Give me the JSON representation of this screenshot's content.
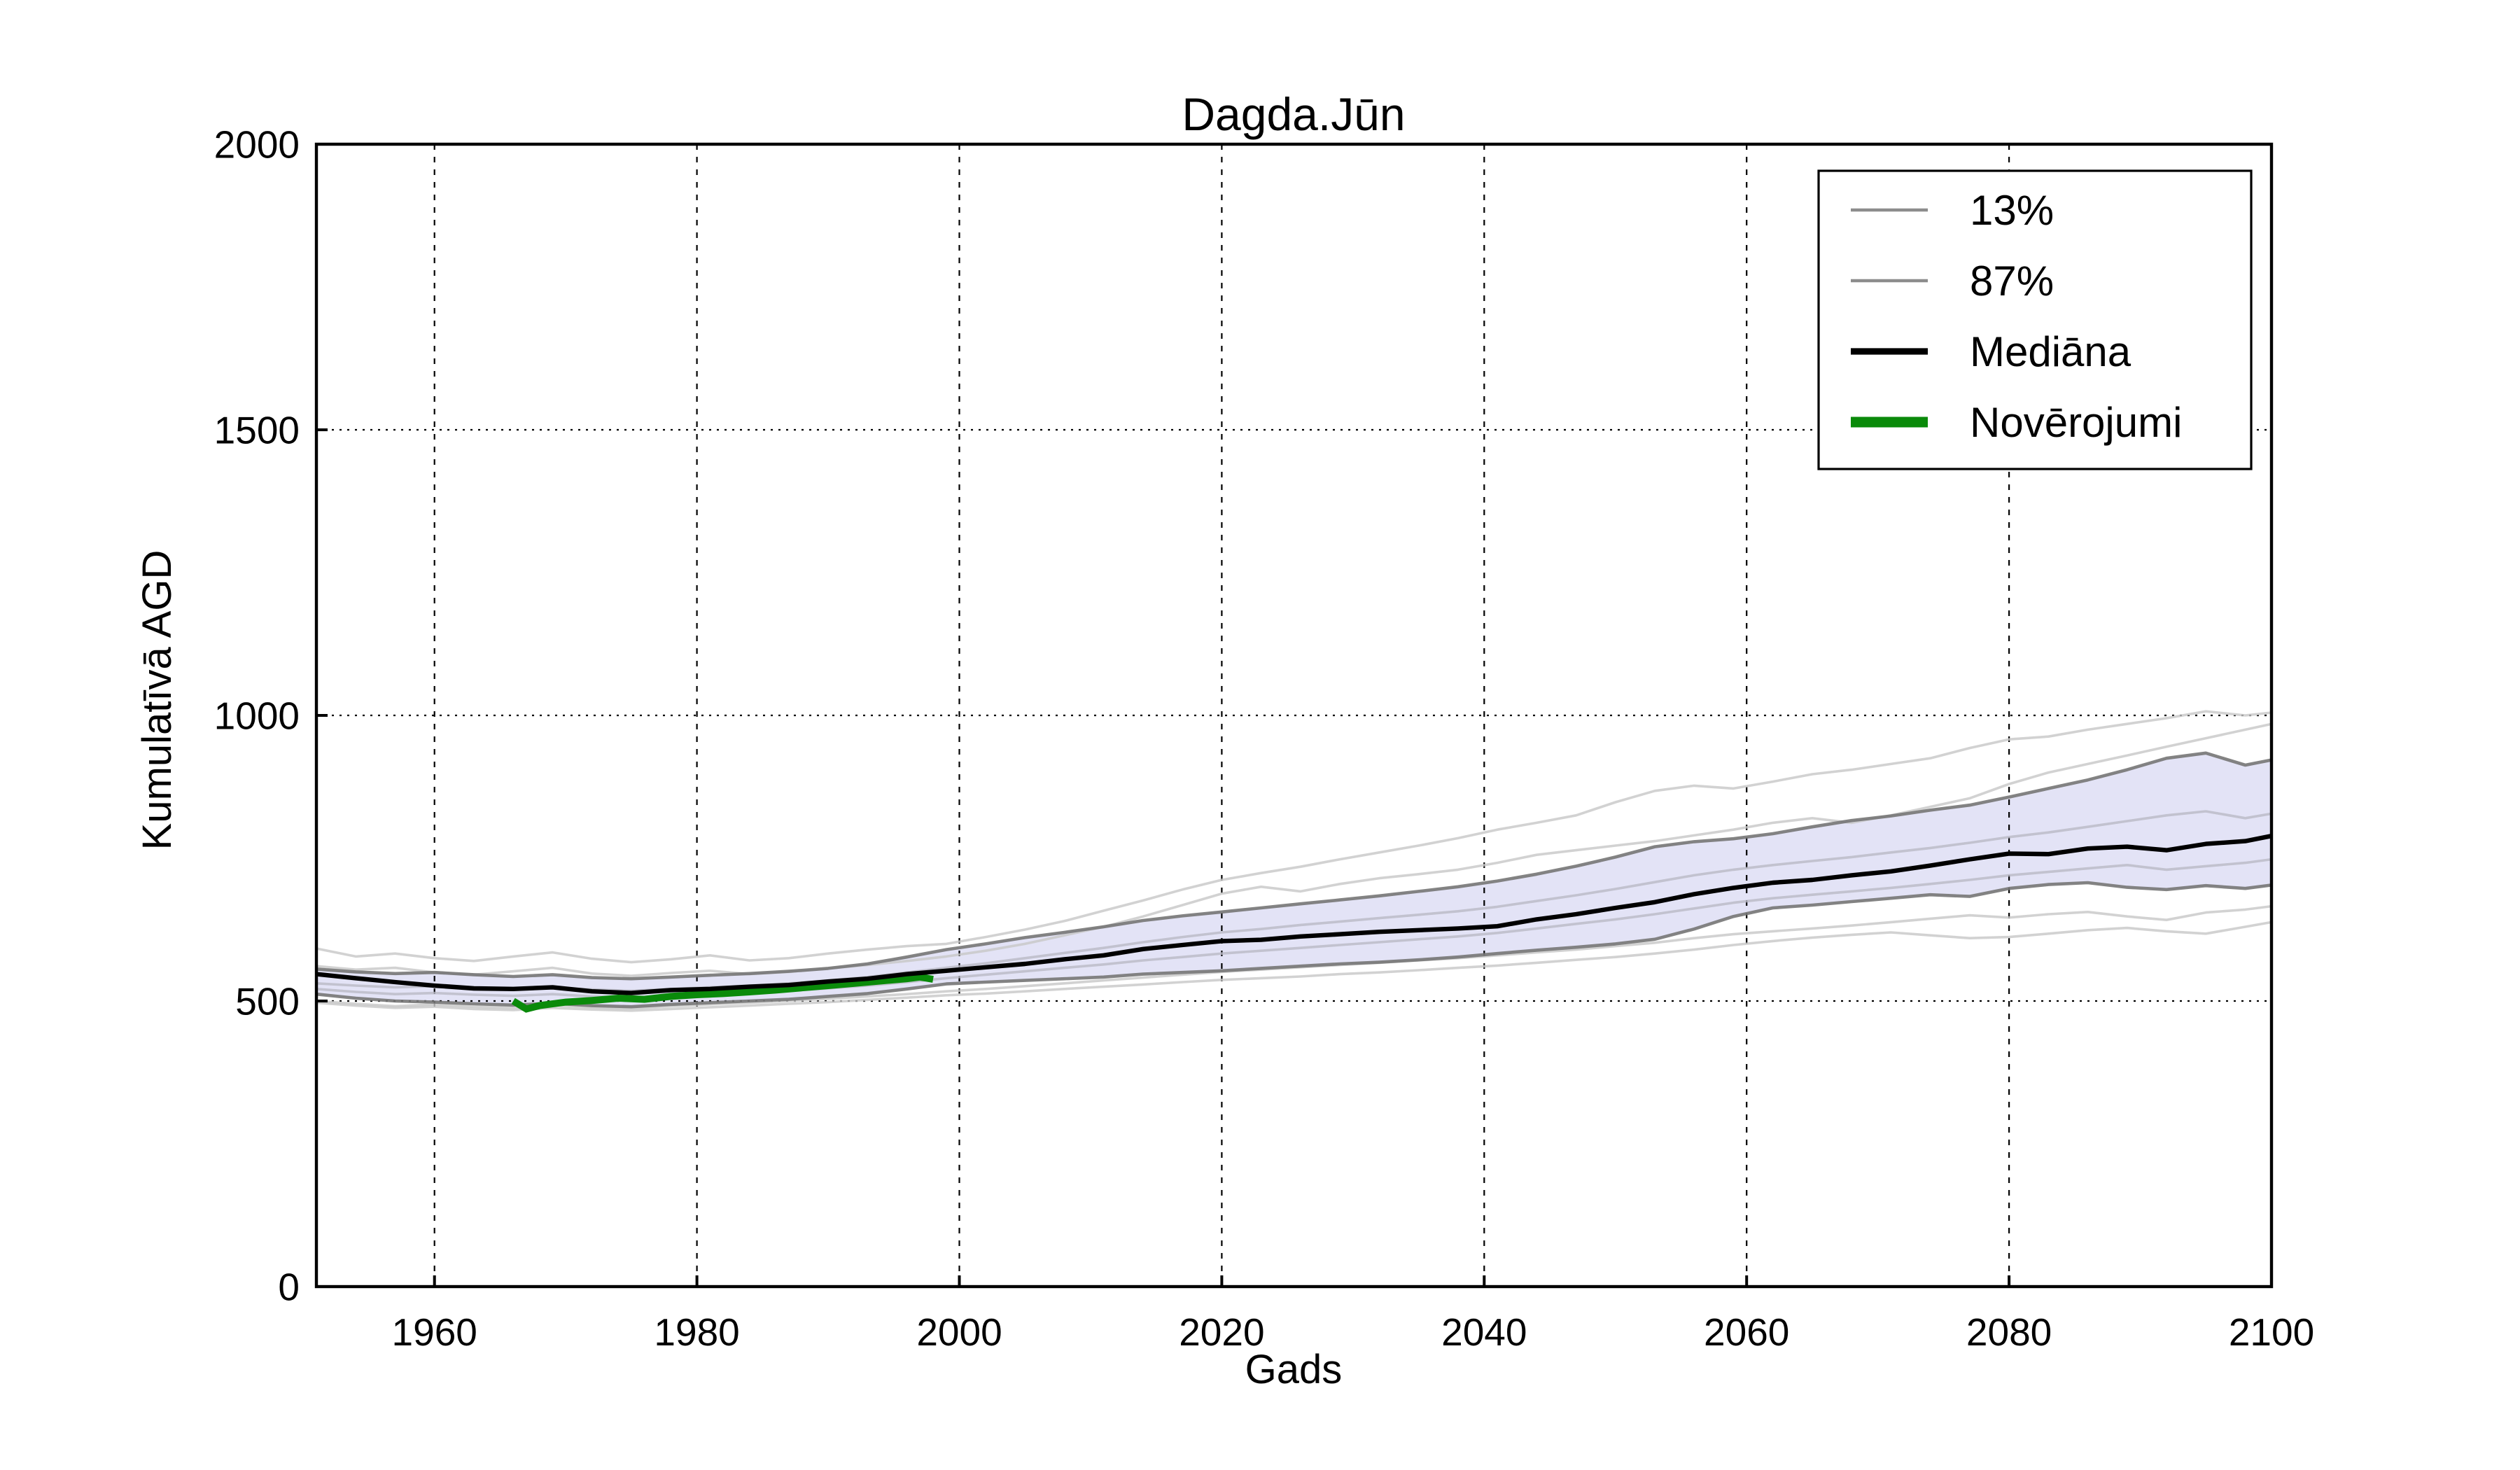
{
  "figure": {
    "background": "#ffffff",
    "text_color": "#000000"
  },
  "chart_data": {
    "type": "line",
    "title": "Dagda.Jūn",
    "xlabel": "Gads",
    "ylabel": "Kumulatīvā AGD",
    "xlim": [
      1951,
      2100
    ],
    "ylim": [
      0,
      2000
    ],
    "x_ticks": [
      1960,
      1980,
      2000,
      2020,
      2040,
      2060,
      2080,
      2100
    ],
    "y_ticks": [
      0,
      500,
      1000,
      1500,
      2000
    ],
    "grid": "dotted",
    "grid_color": "#000000",
    "legend": {
      "position": "upper right",
      "entries": [
        {
          "label": "13%",
          "color": "#8c8c8c",
          "line_width": 2.3
        },
        {
          "label": "87%",
          "color": "#8c8c8c",
          "line_width": 2.3
        },
        {
          "label": "Mediāna",
          "color": "#000000",
          "line_width": 4.6
        },
        {
          "label": "Novērojumi",
          "color": "#0a8a0a",
          "line_width": 7.5
        }
      ]
    },
    "band": {
      "name": "13-87% interkvantilu josla",
      "fill": "#dcdcf4",
      "opacity": 0.8
    },
    "years": [
      1951,
      1954,
      1957,
      1960,
      1963,
      1966,
      1969,
      1972,
      1975,
      1978,
      1981,
      1984,
      1987,
      1990,
      1993,
      1996,
      1999,
      2002,
      2005,
      2008,
      2011,
      2014,
      2017,
      2020,
      2023,
      2026,
      2029,
      2032,
      2035,
      2038,
      2041,
      2044,
      2047,
      2050,
      2053,
      2056,
      2059,
      2062,
      2065,
      2068,
      2071,
      2074,
      2077,
      2080,
      2083,
      2086,
      2089,
      2092,
      2095,
      2098,
      2100
    ],
    "series": [
      {
        "name": "87%",
        "role": "quantile-upper",
        "color": "#767676",
        "width": 2.3,
        "opacity": 0.9,
        "values": [
          556,
          551,
          548,
          550,
          546,
          543,
          546,
          541,
          539,
          542,
          545,
          548,
          552,
          557,
          565,
          577,
          590,
          600,
          611,
          620,
          630,
          641,
          649,
          656,
          663,
          670,
          677,
          684,
          692,
          700,
          710,
          722,
          736,
          752,
          770,
          779,
          784,
          793,
          805,
          816,
          824,
          834,
          843,
          857,
          872,
          887,
          905,
          925,
          934,
          913,
          922
        ]
      },
      {
        "name": "13%",
        "role": "quantile-lower",
        "color": "#767676",
        "width": 2.3,
        "opacity": 0.9,
        "values": [
          512,
          505,
          500,
          498,
          495,
          493,
          496,
          492,
          490,
          494,
          497,
          500,
          503,
          508,
          513,
          521,
          530,
          533,
          536,
          539,
          542,
          547,
          550,
          553,
          557,
          561,
          565,
          568,
          572,
          577,
          583,
          589,
          594,
          600,
          608,
          626,
          648,
          663,
          668,
          674,
          680,
          686,
          683,
          697,
          704,
          707,
          699,
          695,
          702,
          697,
          703
        ]
      },
      {
        "name": "Mediāna",
        "role": "median",
        "color": "#000000",
        "width": 3.2,
        "opacity": 1,
        "values": [
          547,
          540,
          533,
          527,
          522,
          521,
          524,
          517,
          514,
          519,
          521,
          525,
          528,
          534,
          539,
          547,
          553,
          559,
          565,
          573,
          580,
          591,
          598,
          605,
          607,
          613,
          617,
          621,
          624,
          627,
          631,
          643,
          652,
          663,
          673,
          687,
          698,
          707,
          712,
          720,
          727,
          737,
          748,
          758,
          757,
          767,
          770,
          764,
          775,
          780,
          789
        ]
      },
      {
        "name": "ensemble-1",
        "role": "ensemble",
        "color": "#c7c7c7",
        "width": 1.8,
        "opacity": 0.8,
        "values": [
          592,
          578,
          583,
          575,
          570,
          578,
          585,
          574,
          568,
          573,
          580,
          571,
          575,
          583,
          590,
          596,
          600,
          612,
          625,
          640,
          658,
          676,
          695,
          712,
          724,
          735,
          748,
          760,
          772,
          785,
          800,
          812,
          825,
          848,
          868,
          877,
          872,
          884,
          897,
          905,
          915,
          925,
          943,
          958,
          963,
          975,
          985,
          995,
          1007,
          1000,
          1005
        ]
      },
      {
        "name": "ensemble-2",
        "role": "ensemble",
        "color": "#c7c7c7",
        "width": 1.8,
        "opacity": 0.8,
        "values": [
          561,
          555,
          558,
          550,
          546,
          552,
          558,
          548,
          544,
          549,
          553,
          547,
          551,
          557,
          563,
          570,
          578,
          588,
          600,
          615,
          630,
          648,
          668,
          688,
          700,
          692,
          705,
          715,
          722,
          730,
          742,
          756,
          764,
          772,
          780,
          790,
          800,
          812,
          820,
          812,
          825,
          840,
          855,
          880,
          900,
          915,
          930,
          945,
          960,
          975,
          985
        ]
      },
      {
        "name": "ensemble-3",
        "role": "ensemble",
        "color": "#c7c7c7",
        "width": 1.8,
        "opacity": 0.8,
        "values": [
          500,
          495,
          491,
          494,
          490,
          488,
          493,
          489,
          487,
          491,
          494,
          497,
          500,
          504,
          508,
          512,
          517,
          521,
          526,
          531,
          536,
          541,
          546,
          551,
          555,
          559,
          563,
          567,
          571,
          575,
          580,
          585,
          590,
          596,
          602,
          610,
          617,
          622,
          627,
          632,
          638,
          644,
          650,
          646,
          652,
          656,
          648,
          642,
          655,
          660,
          666
        ]
      },
      {
        "name": "ensemble-4",
        "role": "ensemble",
        "color": "#c7c7c7",
        "width": 1.8,
        "opacity": 0.8,
        "values": [
          497,
          492,
          488,
          490,
          486,
          484,
          488,
          485,
          483,
          486,
          489,
          492,
          495,
          498,
          502,
          506,
          510,
          513,
          517,
          521,
          525,
          529,
          533,
          537,
          540,
          543,
          547,
          550,
          554,
          558,
          562,
          567,
          572,
          577,
          583,
          590,
          598,
          605,
          611,
          616,
          620,
          615,
          610,
          612,
          618,
          624,
          628,
          622,
          618,
          630,
          638
        ]
      },
      {
        "name": "ensemble-5",
        "role": "ensemble",
        "color": "#b9b9c6",
        "width": 1.8,
        "opacity": 0.8,
        "values": [
          531,
          527,
          524,
          526,
          523,
          521,
          524,
          520,
          518,
          521,
          524,
          527,
          531,
          536,
          542,
          550,
          558,
          566,
          575,
          584,
          593,
          603,
          612,
          620,
          626,
          633,
          639,
          645,
          651,
          657,
          665,
          675,
          685,
          696,
          708,
          720,
          730,
          738,
          745,
          752,
          760,
          768,
          777,
          787,
          795,
          805,
          815,
          825,
          832,
          820,
          828
        ]
      },
      {
        "name": "ensemble-6",
        "role": "ensemble",
        "color": "#b9b9c6",
        "width": 1.8,
        "opacity": 0.8,
        "values": [
          521,
          516,
          512,
          514,
          511,
          509,
          512,
          508,
          506,
          509,
          512,
          515,
          518,
          522,
          527,
          533,
          540,
          546,
          552,
          558,
          564,
          571,
          577,
          583,
          588,
          593,
          598,
          603,
          608,
          613,
          619,
          627,
          635,
          643,
          652,
          662,
          672,
          680,
          686,
          692,
          698,
          705,
          712,
          720,
          726,
          732,
          738,
          730,
          736,
          742,
          748
        ]
      }
    ],
    "observations": {
      "name": "Novērojumi",
      "color": "#0a8a0a",
      "width": 5,
      "years": [
        1966,
        1967,
        1968,
        1970,
        1972,
        1974,
        1976,
        1978,
        1980,
        1982,
        1984,
        1986,
        1988,
        1990,
        1992,
        1994,
        1996,
        1997,
        1998
      ],
      "values": [
        500,
        486,
        492,
        498,
        501,
        505,
        503,
        508,
        511,
        513,
        516,
        519,
        523,
        527,
        531,
        535,
        539,
        542,
        538
      ]
    }
  }
}
